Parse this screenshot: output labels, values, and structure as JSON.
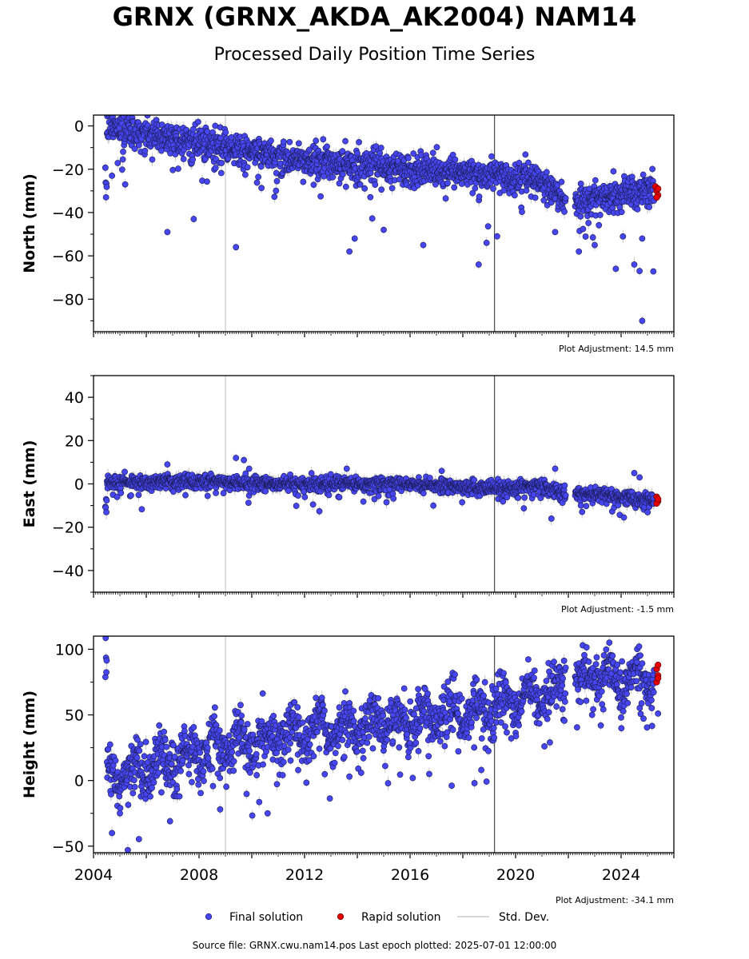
{
  "title": "GRNX (GRNX_AKDA_AK2004) NAM14",
  "subtitle": "Processed Daily Position Time Series",
  "source": "Source file: GRNX.cwu.nam14.pos  Last epoch plotted: 2025-07-01 12:00:00",
  "colors": {
    "final": "#4646f0",
    "rapid": "#e60000",
    "std": "#c8c8c8",
    "vline_light": "#cccccc",
    "vline_dark": "#555555"
  },
  "legend": {
    "final": "Final solution",
    "rapid": "Rapid solution",
    "std": "Std. Dev."
  },
  "chart_data": [
    {
      "type": "scatter",
      "component": "north",
      "ylabel": "North (mm)",
      "adjustment": "Plot Adjustment: 14.5 mm",
      "xlim": [
        2004.0,
        2026.0
      ],
      "ylim": [
        -95,
        5
      ],
      "yticks": [
        "0",
        "−20",
        "−40",
        "−60",
        "−80"
      ],
      "ytick_values": [
        0,
        -20,
        -40,
        -60,
        -80
      ],
      "trend": [
        [
          2004.5,
          0
        ],
        [
          2008.0,
          -8
        ],
        [
          2012.0,
          -16
        ],
        [
          2016.0,
          -20
        ],
        [
          2019.0,
          -22
        ],
        [
          2021.0,
          -25
        ],
        [
          2021.8,
          -34
        ],
        [
          2022.3,
          -35
        ],
        [
          2025.3,
          -29
        ]
      ],
      "spread": 3.5,
      "outliers": [
        [
          2004.7,
          -23
        ],
        [
          2005.2,
          -27
        ],
        [
          2006.8,
          -49
        ],
        [
          2007.8,
          -43
        ],
        [
          2009.4,
          -56
        ],
        [
          2013.7,
          -58
        ],
        [
          2013.9,
          -52
        ],
        [
          2015.0,
          -48
        ],
        [
          2016.5,
          -55
        ],
        [
          2018.6,
          -64
        ],
        [
          2019.3,
          -51
        ],
        [
          2018.9,
          -54
        ],
        [
          2022.4,
          -58
        ],
        [
          2023.0,
          -55
        ],
        [
          2023.8,
          -66
        ],
        [
          2024.5,
          -64
        ],
        [
          2024.7,
          -67
        ],
        [
          2024.8,
          -90
        ],
        [
          2024.8,
          -52
        ],
        [
          2021.5,
          -49
        ]
      ],
      "rapid": [
        [
          2025.3,
          -28
        ],
        [
          2025.35,
          -30
        ],
        [
          2025.4,
          -32
        ],
        [
          2025.35,
          -33
        ],
        [
          2025.4,
          -29
        ]
      ]
    },
    {
      "type": "scatter",
      "component": "east",
      "ylabel": "East (mm)",
      "adjustment": "Plot Adjustment: -1.5 mm",
      "xlim": [
        2004.0,
        2026.0
      ],
      "ylim": [
        -50,
        50
      ],
      "yticks": [
        "40",
        "20",
        "0",
        "−20",
        "−40"
      ],
      "ytick_values": [
        40,
        20,
        0,
        -20,
        -40
      ],
      "trend": [
        [
          2004.5,
          1
        ],
        [
          2008.0,
          1
        ],
        [
          2012.0,
          0
        ],
        [
          2016.0,
          0
        ],
        [
          2019.0,
          -2
        ],
        [
          2021.0,
          -1
        ],
        [
          2021.8,
          -4
        ],
        [
          2022.3,
          -4
        ],
        [
          2025.3,
          -8
        ]
      ],
      "spread": 1.6,
      "outliers": [
        [
          2006.8,
          9
        ],
        [
          2009.4,
          12
        ],
        [
          2009.7,
          11
        ],
        [
          2009.9,
          7
        ],
        [
          2013.6,
          7
        ],
        [
          2017.2,
          6
        ],
        [
          2021.5,
          7
        ],
        [
          2024.5,
          5
        ],
        [
          2024.7,
          3
        ]
      ],
      "rapid": [
        [
          2025.35,
          -6
        ],
        [
          2025.4,
          -8
        ],
        [
          2025.35,
          -9
        ],
        [
          2025.4,
          -7
        ]
      ]
    },
    {
      "type": "scatter",
      "component": "height",
      "ylabel": "Height (mm)",
      "adjustment": "Plot Adjustment: -34.1 mm",
      "xlim": [
        2004.0,
        2026.0
      ],
      "ylim": [
        -55,
        110
      ],
      "yticks": [
        "100",
        "50",
        "0",
        "−50"
      ],
      "ytick_values": [
        100,
        50,
        0,
        -50
      ],
      "trend": [
        [
          2004.5,
          2
        ],
        [
          2008.0,
          22
        ],
        [
          2012.0,
          38
        ],
        [
          2016.0,
          47
        ],
        [
          2019.0,
          55
        ],
        [
          2021.0,
          65
        ],
        [
          2021.8,
          72
        ],
        [
          2022.3,
          78
        ],
        [
          2025.3,
          80
        ]
      ],
      "spread": 9,
      "seasonal": 8,
      "outliers": [
        [
          2004.7,
          -40
        ],
        [
          2005.3,
          -53
        ],
        [
          2005.0,
          -25
        ],
        [
          2006.9,
          -31
        ],
        [
          2008.8,
          -22
        ],
        [
          2010.6,
          -25
        ],
        [
          2013.7,
          3
        ],
        [
          2018.7,
          8
        ],
        [
          2021.3,
          29
        ],
        [
          2022.9,
          50
        ],
        [
          2024.0,
          48
        ],
        [
          2025.4,
          51
        ]
      ],
      "rapid": [
        [
          2025.35,
          75
        ],
        [
          2025.4,
          80
        ],
        [
          2025.35,
          85
        ],
        [
          2025.4,
          88
        ],
        [
          2025.4,
          78
        ]
      ]
    }
  ],
  "xticks": [
    "2004",
    "2008",
    "2012",
    "2016",
    "2020",
    "2024"
  ],
  "xtick_values": [
    2004,
    2008,
    2012,
    2016,
    2020,
    2024
  ],
  "vlines": [
    {
      "x": 2009.0,
      "style": "light"
    },
    {
      "x": 2019.2,
      "style": "dark"
    }
  ]
}
